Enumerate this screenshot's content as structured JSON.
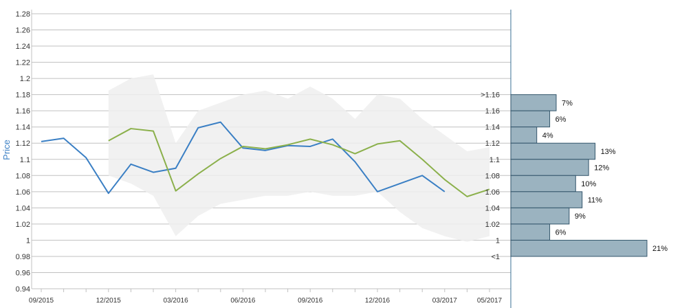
{
  "chart_data": {
    "type": "line",
    "ylabel": "Price",
    "ylim": [
      0.94,
      1.28
    ],
    "y_ticks": [
      "0.94",
      "0.96",
      "0.98",
      "1",
      "1.02",
      "1.04",
      "1.06",
      "1.08",
      "1.1",
      "1.12",
      "1.14",
      "1.16",
      "1.18",
      "1.2",
      "1.22",
      "1.24",
      "1.26",
      "1.28"
    ],
    "x_ticks": [
      "09/2015",
      "12/2015",
      "03/2016",
      "06/2016",
      "09/2016",
      "12/2016",
      "03/2017",
      "05/2017"
    ],
    "x_tick_index": [
      0,
      3,
      6,
      9,
      12,
      15,
      18,
      20
    ],
    "grid": true,
    "colors": {
      "series_blue": "#3a7fc4",
      "series_green": "#8bb04b",
      "band": "#eeeeee",
      "bar_fill": "#9bb3c0",
      "bar_stroke": "#33556b",
      "grid": "#c0c0c0",
      "axis": "#3a6f96",
      "ylabel": "#3a7fc4"
    },
    "series": [
      {
        "color": "#3a7fc4",
        "values": [
          1.122,
          1.126,
          1.102,
          1.058,
          1.094,
          1.084,
          1.089,
          1.139,
          1.146,
          1.114,
          1.111,
          1.117,
          1.116,
          1.125,
          1.097,
          1.06,
          1.07,
          1.08,
          1.06,
          null,
          null
        ]
      },
      {
        "color": "#8bb04b",
        "values": [
          null,
          null,
          null,
          1.123,
          1.138,
          1.135,
          1.061,
          1.082,
          1.101,
          1.116,
          1.113,
          1.118,
          1.125,
          1.118,
          1.107,
          1.119,
          1.123,
          1.1,
          1.075,
          1.054,
          1.063
        ]
      }
    ],
    "band": {
      "upper": [
        null,
        null,
        null,
        1.185,
        1.2,
        1.205,
        1.12,
        1.16,
        1.17,
        1.18,
        1.185,
        1.175,
        1.19,
        1.175,
        1.15,
        1.18,
        1.175,
        1.15,
        1.13,
        1.11,
        1.115
      ],
      "lower": [
        null,
        null,
        null,
        1.08,
        1.07,
        1.055,
        1.005,
        1.03,
        1.045,
        1.05,
        1.055,
        1.055,
        1.06,
        1.055,
        1.055,
        1.06,
        1.035,
        1.015,
        1.005,
        0.998,
        1.005
      ]
    },
    "distribution": {
      "bins": [
        ">1.16",
        "1.16",
        "1.14",
        "1.12",
        "1.1",
        "1.08",
        "1.06",
        "1.04",
        "1.02",
        "1",
        "<1"
      ],
      "values": [
        7,
        6,
        4,
        13,
        12,
        10,
        11,
        9,
        6,
        21
      ],
      "labels": [
        "7%",
        "6%",
        "4%",
        "13%",
        "12%",
        "10%",
        "11%",
        "9%",
        "6%",
        "21%"
      ],
      "bar_top_values": [
        1.18,
        1.16,
        1.14,
        1.12,
        1.1,
        1.08,
        1.06,
        1.04,
        1.02,
        1.0
      ],
      "bar_bottom_values": [
        1.16,
        1.14,
        1.12,
        1.1,
        1.08,
        1.06,
        1.04,
        1.02,
        1.0,
        0.98
      ],
      "max_value": 21
    }
  }
}
